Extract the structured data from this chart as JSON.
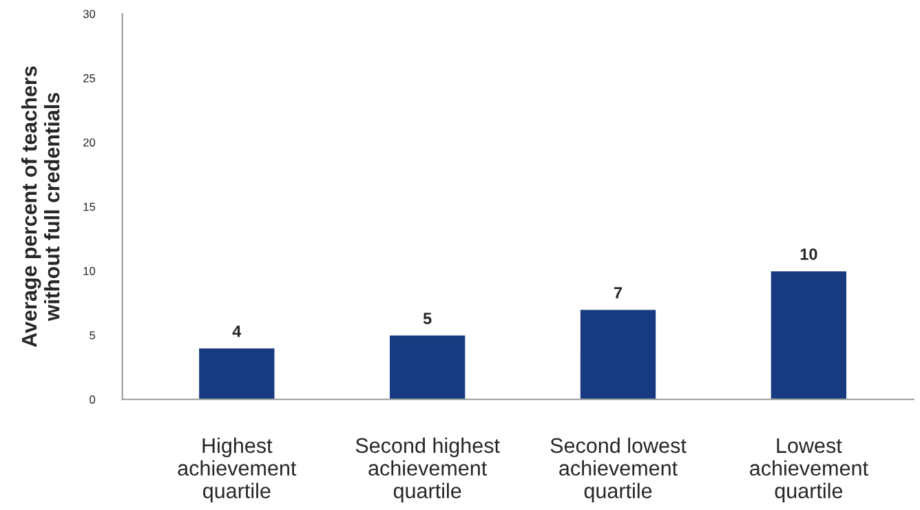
{
  "chart_data": {
    "type": "bar",
    "ylabel": "Average percent of teachers\nwithout full credentials",
    "categories": [
      "Highest\nachievement\nquartile",
      "Second highest\nachievement\nquartile",
      "Second lowest\nachievement\nquartile",
      "Lowest\nachievement\nquartile"
    ],
    "values": [
      4,
      5,
      7,
      10
    ],
    "color": "#173a80",
    "ylim": [
      0,
      30
    ],
    "yticks": [
      0,
      5,
      10,
      15,
      20,
      25,
      30
    ],
    "data_labels": true,
    "grid": false,
    "legend": false
  }
}
